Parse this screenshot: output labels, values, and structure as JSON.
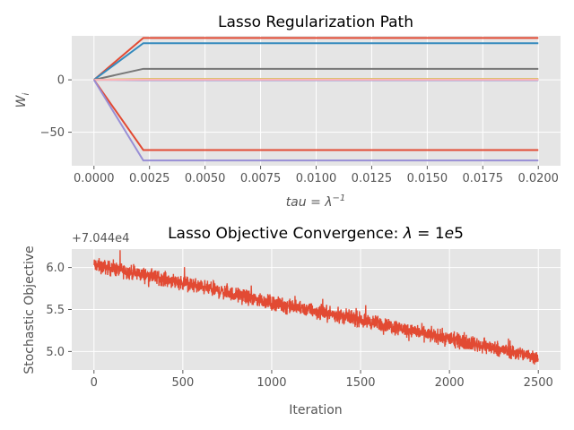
{
  "chart_data": [
    {
      "type": "line",
      "title": "Lasso Regularization Path",
      "xlabel": "tau = λ⁻¹",
      "ylabel": "W_i",
      "xlim": [
        -0.001,
        0.021
      ],
      "ylim": [
        -82,
        42
      ],
      "x_ticks": [
        0.0,
        0.0025,
        0.005,
        0.0075,
        0.01,
        0.0125,
        0.015,
        0.0175,
        0.02
      ],
      "x_tick_labels": [
        "0.0000",
        "0.0025",
        "0.0050",
        "0.0075",
        "0.0100",
        "0.0125",
        "0.0150",
        "0.0175",
        "0.0200"
      ],
      "y_ticks": [
        -50,
        0
      ],
      "y_tick_labels": [
        "−50",
        "0"
      ],
      "grid": true,
      "x": [
        0.0,
        0.00222,
        0.02
      ],
      "series": [
        {
          "color": "#E24A33",
          "values": [
            0,
            40,
            40
          ]
        },
        {
          "color": "#348ABD",
          "values": [
            0,
            35,
            35
          ]
        },
        {
          "color": "#777777",
          "values": [
            0,
            10.5,
            10.5
          ]
        },
        {
          "color": "#FBC15E",
          "values": [
            0,
            0.8,
            0.8
          ]
        },
        {
          "color": "#8EBA42",
          "values": [
            0,
            0.4,
            0.4
          ]
        },
        {
          "color": "#988ED5",
          "values": [
            0,
            -0.3,
            -0.3
          ]
        },
        {
          "color": "#FFB5B8",
          "values": [
            0,
            0.2,
            0.2
          ]
        },
        {
          "color": "#E24A33",
          "values": [
            0,
            -67,
            -67
          ]
        },
        {
          "color": "#988ED5",
          "values": [
            0,
            -77,
            -77
          ]
        }
      ]
    },
    {
      "type": "line",
      "title": "Lasso Objective Convergence: λ = 1e5",
      "xlabel": "Iteration",
      "ylabel": "Stochastic Objective",
      "offset_text": "+7.044e4",
      "xlim": [
        -125,
        2625
      ],
      "ylim": [
        4.78,
        6.22
      ],
      "x_ticks": [
        0,
        500,
        1000,
        1500,
        2000,
        2500
      ],
      "x_tick_labels": [
        "0",
        "500",
        "1000",
        "1500",
        "2000",
        "2500"
      ],
      "y_ticks": [
        5.0,
        5.5,
        6.0
      ],
      "y_tick_labels": [
        "5.0",
        "5.5",
        "6.0"
      ],
      "grid": true,
      "series": [
        {
          "color": "#E24A33",
          "trend_x": [
            0,
            500,
            1000,
            1500,
            2000,
            2500
          ],
          "trend_values": [
            6.03,
            5.82,
            5.58,
            5.38,
            5.15,
            4.93
          ],
          "noise_amplitude": 0.06,
          "n_points": 2500
        }
      ]
    }
  ]
}
